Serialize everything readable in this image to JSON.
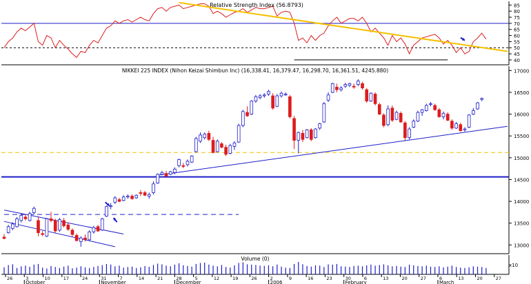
{
  "chart_data": {
    "type": "candlestick",
    "panels": {
      "rsi": {
        "title": "Relative Strength Index (56.8793)",
        "yticks": [
          40,
          45,
          50,
          55,
          60,
          65,
          70,
          75,
          80,
          85
        ],
        "ylim": [
          36,
          88
        ],
        "overbought": 70,
        "oversold": 40,
        "midline": 50
      },
      "price": {
        "title": "NIKKEI 225 INDEX (Nihon Keizai Shimbun Inc) (16,338.41, 16,379.47, 16,298.70, 16,361.51, 4245.880)",
        "yticks": [
          13000,
          13500,
          14000,
          14500,
          15000,
          15500,
          16000,
          16500,
          17000
        ],
        "ylim": [
          12800,
          17100
        ],
        "hlines": [
          {
            "value": 14560,
            "style": "solid",
            "color": "#1c1cc8"
          },
          {
            "value": 15120,
            "style": "dashed",
            "color": "#f0c000"
          }
        ]
      },
      "volume": {
        "title": "Volume (0)",
        "ytick_label": "x10"
      }
    },
    "xaxis": {
      "day_labels": [
        "26",
        "3",
        "10",
        "17",
        "24",
        "31",
        "7",
        "14",
        "21",
        "28",
        "5",
        "12",
        "19",
        "26",
        "2",
        "9",
        "16",
        "23",
        "30",
        "6",
        "13",
        "20",
        "27",
        "6",
        "13",
        "20",
        "27"
      ],
      "month_labels": [
        "October",
        "November",
        "December",
        "2006",
        "February",
        "March"
      ]
    },
    "candles": [
      {
        "o": 13180,
        "h": 13250,
        "l": 13130,
        "c": 13150
      },
      {
        "o": 13280,
        "h": 13460,
        "l": 13260,
        "c": 13420
      },
      {
        "o": 13380,
        "h": 13520,
        "l": 13340,
        "c": 13480
      },
      {
        "o": 13420,
        "h": 13640,
        "l": 13400,
        "c": 13600
      },
      {
        "o": 13560,
        "h": 13720,
        "l": 13520,
        "c": 13680
      },
      {
        "o": 13640,
        "h": 13700,
        "l": 13560,
        "c": 13600
      },
      {
        "o": 13560,
        "h": 13760,
        "l": 13540,
        "c": 13720
      },
      {
        "o": 13740,
        "h": 13880,
        "l": 13700,
        "c": 13840
      },
      {
        "o": 13560,
        "h": 13640,
        "l": 13200,
        "c": 13280
      },
      {
        "o": 13260,
        "h": 13320,
        "l": 13200,
        "c": 13240
      },
      {
        "o": 13200,
        "h": 13620,
        "l": 13180,
        "c": 13600
      },
      {
        "o": 13600,
        "h": 13760,
        "l": 13520,
        "c": 13560
      },
      {
        "o": 13560,
        "h": 13600,
        "l": 13280,
        "c": 13320
      },
      {
        "o": 13340,
        "h": 13620,
        "l": 13300,
        "c": 13580
      },
      {
        "o": 13560,
        "h": 13620,
        "l": 13400,
        "c": 13440
      },
      {
        "o": 13460,
        "h": 13520,
        "l": 13320,
        "c": 13360
      },
      {
        "o": 13340,
        "h": 13380,
        "l": 13200,
        "c": 13240
      },
      {
        "o": 13220,
        "h": 13260,
        "l": 13080,
        "c": 13100
      },
      {
        "o": 13080,
        "h": 13200,
        "l": 12960,
        "c": 13160
      },
      {
        "o": 13160,
        "h": 13240,
        "l": 13080,
        "c": 13120
      },
      {
        "o": 13120,
        "h": 13340,
        "l": 13100,
        "c": 13300
      },
      {
        "o": 13300,
        "h": 13440,
        "l": 13260,
        "c": 13400
      },
      {
        "o": 13420,
        "h": 13460,
        "l": 13300,
        "c": 13320
      },
      {
        "o": 13340,
        "h": 13620,
        "l": 13320,
        "c": 13600
      },
      {
        "o": 13660,
        "h": 13900,
        "l": 13640,
        "c": 13880
      },
      {
        "o": 13880,
        "h": 13960,
        "l": 13820,
        "c": 13900
      },
      {
        "o": 13980,
        "h": 14120,
        "l": 13940,
        "c": 14080
      },
      {
        "o": 14040,
        "h": 14080,
        "l": 13980,
        "c": 14000
      },
      {
        "o": 14020,
        "h": 14140,
        "l": 14000,
        "c": 14100
      },
      {
        "o": 14100,
        "h": 14160,
        "l": 14060,
        "c": 14120
      },
      {
        "o": 14120,
        "h": 14160,
        "l": 14040,
        "c": 14060
      },
      {
        "o": 14080,
        "h": 14160,
        "l": 14060,
        "c": 14140
      },
      {
        "o": 14200,
        "h": 14260,
        "l": 14120,
        "c": 14180
      },
      {
        "o": 14200,
        "h": 14240,
        "l": 14120,
        "c": 14140
      },
      {
        "o": 14120,
        "h": 14200,
        "l": 14060,
        "c": 14160
      },
      {
        "o": 14200,
        "h": 14460,
        "l": 14160,
        "c": 14400
      },
      {
        "o": 14420,
        "h": 14640,
        "l": 14400,
        "c": 14620
      },
      {
        "o": 14620,
        "h": 14700,
        "l": 14600,
        "c": 14660
      },
      {
        "o": 14640,
        "h": 14700,
        "l": 14560,
        "c": 14580
      },
      {
        "o": 14620,
        "h": 14700,
        "l": 14600,
        "c": 14680
      },
      {
        "o": 14660,
        "h": 14780,
        "l": 14620,
        "c": 14740
      },
      {
        "o": 14820,
        "h": 14980,
        "l": 14780,
        "c": 14960
      },
      {
        "o": 14820,
        "h": 14880,
        "l": 14760,
        "c": 14800
      },
      {
        "o": 14840,
        "h": 14960,
        "l": 14800,
        "c": 14920
      },
      {
        "o": 14900,
        "h": 15060,
        "l": 14880,
        "c": 15040
      },
      {
        "o": 15140,
        "h": 15480,
        "l": 15120,
        "c": 15440
      },
      {
        "o": 15380,
        "h": 15580,
        "l": 15340,
        "c": 15520
      },
      {
        "o": 15460,
        "h": 15580,
        "l": 15420,
        "c": 15540
      },
      {
        "o": 15560,
        "h": 15620,
        "l": 15380,
        "c": 15420
      },
      {
        "o": 15400,
        "h": 15480,
        "l": 15100,
        "c": 15120
      },
      {
        "o": 15140,
        "h": 15420,
        "l": 15120,
        "c": 15380
      },
      {
        "o": 15320,
        "h": 15360,
        "l": 15220,
        "c": 15240
      },
      {
        "o": 15240,
        "h": 15300,
        "l": 15040,
        "c": 15080
      },
      {
        "o": 15100,
        "h": 15320,
        "l": 15080,
        "c": 15280
      },
      {
        "o": 15260,
        "h": 15380,
        "l": 15180,
        "c": 15340
      },
      {
        "o": 15360,
        "h": 15780,
        "l": 15340,
        "c": 15740
      },
      {
        "o": 15740,
        "h": 16100,
        "l": 15700,
        "c": 16060
      },
      {
        "o": 16040,
        "h": 16180,
        "l": 15940,
        "c": 15960
      },
      {
        "o": 16000,
        "h": 16320,
        "l": 15980,
        "c": 16300
      },
      {
        "o": 16300,
        "h": 16440,
        "l": 16260,
        "c": 16400
      },
      {
        "o": 16380,
        "h": 16460,
        "l": 16340,
        "c": 16420
      },
      {
        "o": 16420,
        "h": 16480,
        "l": 16380,
        "c": 16440
      },
      {
        "o": 16460,
        "h": 16560,
        "l": 16420,
        "c": 16520
      },
      {
        "o": 16420,
        "h": 16480,
        "l": 16100,
        "c": 16140
      },
      {
        "o": 16180,
        "h": 16460,
        "l": 16160,
        "c": 16420
      },
      {
        "o": 16420,
        "h": 16520,
        "l": 16380,
        "c": 16480
      },
      {
        "o": 16440,
        "h": 16500,
        "l": 16420,
        "c": 16460
      },
      {
        "o": 16400,
        "h": 16440,
        "l": 15900,
        "c": 15940
      },
      {
        "o": 15900,
        "h": 15960,
        "l": 15200,
        "c": 15400
      },
      {
        "o": 15400,
        "h": 15600,
        "l": 15100,
        "c": 15580
      },
      {
        "o": 15560,
        "h": 15640,
        "l": 15360,
        "c": 15420
      },
      {
        "o": 15460,
        "h": 15660,
        "l": 15440,
        "c": 15640
      },
      {
        "o": 15640,
        "h": 15680,
        "l": 15380,
        "c": 15420
      },
      {
        "o": 15460,
        "h": 15680,
        "l": 15440,
        "c": 15660
      },
      {
        "o": 15680,
        "h": 15800,
        "l": 15640,
        "c": 15780
      },
      {
        "o": 15820,
        "h": 16280,
        "l": 15800,
        "c": 16240
      },
      {
        "o": 16320,
        "h": 16500,
        "l": 16280,
        "c": 16440
      },
      {
        "o": 16500,
        "h": 16720,
        "l": 16480,
        "c": 16700
      },
      {
        "o": 16620,
        "h": 16700,
        "l": 16500,
        "c": 16560
      },
      {
        "o": 16560,
        "h": 16640,
        "l": 16520,
        "c": 16600
      },
      {
        "o": 16640,
        "h": 16720,
        "l": 16600,
        "c": 16680
      },
      {
        "o": 16660,
        "h": 16720,
        "l": 16620,
        "c": 16700
      },
      {
        "o": 16640,
        "h": 16700,
        "l": 16580,
        "c": 16620
      },
      {
        "o": 16680,
        "h": 16800,
        "l": 16640,
        "c": 16760
      },
      {
        "o": 16700,
        "h": 16740,
        "l": 16560,
        "c": 16600
      },
      {
        "o": 16560,
        "h": 16600,
        "l": 16260,
        "c": 16300
      },
      {
        "o": 16300,
        "h": 16500,
        "l": 16280,
        "c": 16480
      },
      {
        "o": 16460,
        "h": 16500,
        "l": 16200,
        "c": 16240
      },
      {
        "o": 16220,
        "h": 16260,
        "l": 15980,
        "c": 16000
      },
      {
        "o": 15980,
        "h": 16020,
        "l": 15700,
        "c": 15740
      },
      {
        "o": 15760,
        "h": 16200,
        "l": 15720,
        "c": 16120
      },
      {
        "o": 16140,
        "h": 16200,
        "l": 15820,
        "c": 15860
      },
      {
        "o": 15880,
        "h": 16080,
        "l": 15860,
        "c": 16040
      },
      {
        "o": 16020,
        "h": 16060,
        "l": 15800,
        "c": 15820
      },
      {
        "o": 15800,
        "h": 15840,
        "l": 15400,
        "c": 15460
      },
      {
        "o": 15460,
        "h": 15700,
        "l": 15420,
        "c": 15660
      },
      {
        "o": 15700,
        "h": 15880,
        "l": 15680,
        "c": 15840
      },
      {
        "o": 15840,
        "h": 16080,
        "l": 15820,
        "c": 16040
      },
      {
        "o": 16040,
        "h": 16120,
        "l": 15960,
        "c": 16100
      },
      {
        "o": 16080,
        "h": 16240,
        "l": 16060,
        "c": 16200
      },
      {
        "o": 16220,
        "h": 16280,
        "l": 16180,
        "c": 16240
      },
      {
        "o": 16200,
        "h": 16240,
        "l": 16080,
        "c": 16100
      },
      {
        "o": 16100,
        "h": 16140,
        "l": 15920,
        "c": 15940
      },
      {
        "o": 15940,
        "h": 16060,
        "l": 15880,
        "c": 16020
      },
      {
        "o": 16000,
        "h": 16040,
        "l": 15840,
        "c": 15860
      },
      {
        "o": 15840,
        "h": 15880,
        "l": 15640,
        "c": 15680
      },
      {
        "o": 15680,
        "h": 15820,
        "l": 15660,
        "c": 15780
      },
      {
        "o": 15760,
        "h": 15800,
        "l": 15600,
        "c": 15620
      },
      {
        "o": 15640,
        "h": 15700,
        "l": 15600,
        "c": 15660
      },
      {
        "o": 15700,
        "h": 16000,
        "l": 15680,
        "c": 15980
      },
      {
        "o": 16000,
        "h": 16140,
        "l": 15980,
        "c": 16080
      },
      {
        "o": 16120,
        "h": 16280,
        "l": 16100,
        "c": 16260
      },
      {
        "o": 16338,
        "h": 16379,
        "l": 16298,
        "c": 16361
      }
    ],
    "rsi_values": [
      50,
      55,
      58,
      63,
      66,
      64,
      67,
      70,
      55,
      52,
      60,
      58,
      50,
      56,
      52,
      49,
      45,
      42,
      47,
      46,
      52,
      56,
      54,
      60,
      66,
      68,
      72,
      70,
      72,
      73,
      71,
      73,
      75,
      73,
      72,
      78,
      82,
      83,
      80,
      83,
      84,
      85,
      82,
      83,
      84,
      85,
      86,
      86,
      84,
      78,
      80,
      78,
      75,
      77,
      79,
      80,
      82,
      79,
      81,
      83,
      82,
      82,
      83,
      84,
      76,
      79,
      80,
      79,
      70,
      56,
      58,
      54,
      60,
      56,
      60,
      62,
      68,
      72,
      75,
      70,
      72,
      74,
      74,
      72,
      75,
      70,
      63,
      66,
      62,
      58,
      52,
      60,
      55,
      58,
      53,
      45,
      52,
      55,
      58,
      59,
      60,
      61,
      58,
      53,
      56,
      52,
      46,
      50,
      45,
      47,
      55,
      58,
      62,
      57
    ],
    "volume": [
      42,
      55,
      60,
      38,
      48,
      52,
      45,
      58,
      62,
      40,
      35,
      50,
      44,
      38,
      46,
      52,
      36,
      40,
      48,
      42,
      38,
      44,
      50,
      55,
      62,
      58,
      48,
      52,
      40,
      44,
      46,
      38,
      42,
      50,
      45,
      56,
      64,
      60,
      52,
      48,
      58,
      66,
      54,
      50,
      46,
      62,
      68,
      70,
      58,
      52,
      48,
      56,
      44,
      40,
      54,
      68,
      72,
      60,
      58,
      56,
      52,
      50,
      54,
      48,
      58,
      46,
      40,
      38,
      62,
      74,
      60,
      50,
      46,
      54,
      52,
      44,
      60,
      58,
      62,
      48,
      46,
      44,
      50,
      52,
      48,
      54,
      58,
      52,
      56,
      60,
      54,
      48,
      50,
      46,
      44,
      58,
      54,
      50,
      48,
      52,
      46,
      44,
      48,
      42,
      46,
      52,
      44,
      40,
      38,
      42,
      48,
      46,
      44,
      38
    ],
    "trendlines": [
      {
        "panel": "rsi",
        "from": [
          41,
          87
        ],
        "to": [
          119,
          47
        ],
        "color": "#f5c000"
      },
      {
        "panel": "rsi",
        "from": [
          68,
          40
        ],
        "to": [
          104,
          40
        ],
        "color": "#000000"
      },
      {
        "panel": "price",
        "from": [
          36,
          14600
        ],
        "to": [
          122,
          15720
        ],
        "color": "#1c1cc8"
      },
      {
        "panel": "price",
        "from": [
          0,
          13800
        ],
        "to": [
          28,
          13250
        ],
        "color": "#1c1cc8"
      },
      {
        "panel": "price",
        "from": [
          0,
          13540
        ],
        "to": [
          26,
          12960
        ],
        "color": "#1c1cc8"
      },
      {
        "panel": "price",
        "from": [
          0,
          13700
        ],
        "to": [
          55,
          13700
        ],
        "color": "#1c1cc8",
        "dashed": true
      }
    ],
    "grid": false,
    "colors": {
      "up": "#ffffff",
      "down": "#dd1c1c",
      "outline": "#1c1cc8",
      "rsi": "#dd1c1c",
      "volume": "#1c1cc8",
      "axis": "#000000"
    }
  }
}
